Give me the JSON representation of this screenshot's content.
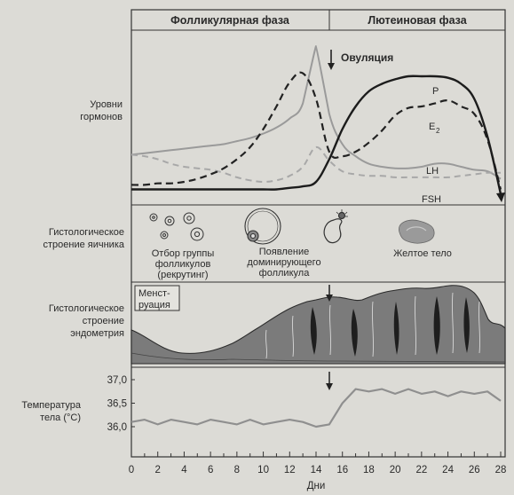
{
  "phases": {
    "follicular": "Фолликулярная фаза",
    "luteal": "Лютеиновая фаза"
  },
  "ovulation_label": "Овуляция",
  "sections": {
    "hormones": [
      "Уровни",
      "гормонов"
    ],
    "ovary": [
      "Гистологическое",
      "строение яичника"
    ],
    "endometrium": [
      "Гистологическое",
      "строение",
      "эндометрия"
    ],
    "temperature": [
      "Температура",
      "тела (°C)"
    ]
  },
  "hormone_labels": {
    "p": "P",
    "e2": "E",
    "e2_sub": "2",
    "lh": "LH",
    "fsh": "FSH"
  },
  "ovary_labels": {
    "recruit": [
      "Отбор группы",
      "фолликулов",
      "(рекрутинг)"
    ],
    "dominant": [
      "Появление",
      "доминирующего",
      "фолликула"
    ],
    "corpus": "Желтое тело"
  },
  "menstruation_label": [
    "Менст-",
    "руация"
  ],
  "x_axis": {
    "label": "Дни",
    "ticks": [
      "0",
      "2",
      "4",
      "6",
      "8",
      "10",
      "12",
      "14",
      "16",
      "18",
      "20",
      "22",
      "24",
      "26",
      "28"
    ]
  },
  "temp_axis": {
    "ticks": [
      "37,0",
      "36,5",
      "36,0"
    ]
  },
  "chart_data": {
    "type": "line",
    "x": [
      0,
      1,
      2,
      3,
      4,
      5,
      6,
      7,
      8,
      9,
      10,
      11,
      12,
      13,
      14,
      15,
      16,
      17,
      18,
      19,
      20,
      21,
      22,
      23,
      24,
      25,
      26,
      27,
      28
    ],
    "series": [
      {
        "name": "LH",
        "values": [
          0.28,
          0.29,
          0.3,
          0.31,
          0.32,
          0.33,
          0.34,
          0.35,
          0.37,
          0.39,
          0.42,
          0.46,
          0.52,
          0.62,
          1.0,
          0.55,
          0.35,
          0.27,
          0.22,
          0.2,
          0.19,
          0.19,
          0.2,
          0.22,
          0.22,
          0.2,
          0.18,
          0.17,
          0.12
        ]
      },
      {
        "name": "FSH",
        "values": [
          0.28,
          0.27,
          0.25,
          0.22,
          0.2,
          0.19,
          0.18,
          0.16,
          0.13,
          0.11,
          0.1,
          0.11,
          0.14,
          0.2,
          0.33,
          0.24,
          0.17,
          0.15,
          0.14,
          0.14,
          0.13,
          0.13,
          0.13,
          0.13,
          0.13,
          0.14,
          0.15,
          0.16,
          0.16
        ]
      },
      {
        "name": "E2",
        "values": [
          0.08,
          0.08,
          0.09,
          0.09,
          0.1,
          0.12,
          0.15,
          0.19,
          0.25,
          0.33,
          0.45,
          0.6,
          0.76,
          0.82,
          0.65,
          0.3,
          0.27,
          0.3,
          0.36,
          0.44,
          0.54,
          0.59,
          0.6,
          0.62,
          0.64,
          0.6,
          0.55,
          0.38,
          0.05
        ]
      },
      {
        "name": "P",
        "values": [
          0.05,
          0.05,
          0.05,
          0.05,
          0.05,
          0.05,
          0.05,
          0.05,
          0.05,
          0.05,
          0.05,
          0.05,
          0.06,
          0.07,
          0.1,
          0.25,
          0.45,
          0.6,
          0.7,
          0.75,
          0.78,
          0.8,
          0.8,
          0.8,
          0.79,
          0.75,
          0.65,
          0.4,
          0.02
        ]
      }
    ],
    "temperature": {
      "ylim": [
        35.8,
        37.2
      ],
      "values": [
        36.1,
        36.15,
        36.05,
        36.15,
        36.1,
        36.05,
        36.15,
        36.1,
        36.05,
        36.15,
        36.05,
        36.1,
        36.15,
        36.1,
        36.0,
        36.05,
        36.5,
        36.8,
        36.75,
        36.8,
        36.7,
        36.8,
        36.7,
        36.75,
        36.65,
        36.75,
        36.7,
        36.75,
        36.55
      ]
    },
    "xlabel": "Дни"
  }
}
